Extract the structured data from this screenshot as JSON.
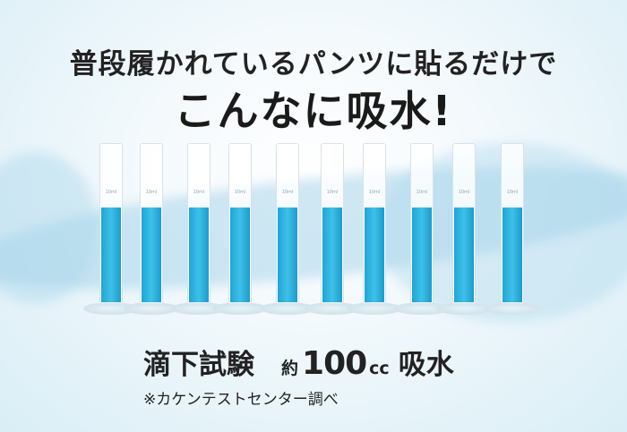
{
  "headline": {
    "line1": "普段履かれているパンツに貼るだけで",
    "line2": "こんなに吸水!"
  },
  "cylinders": {
    "count": 10,
    "capacity_label": "10ml",
    "liquid_color": "#2bb0e0"
  },
  "result": {
    "test_label": "滴下試験",
    "approx": "約",
    "amount": "100",
    "unit": "cc",
    "absorb": "吸水"
  },
  "note": "※カケンテストセンター調べ"
}
